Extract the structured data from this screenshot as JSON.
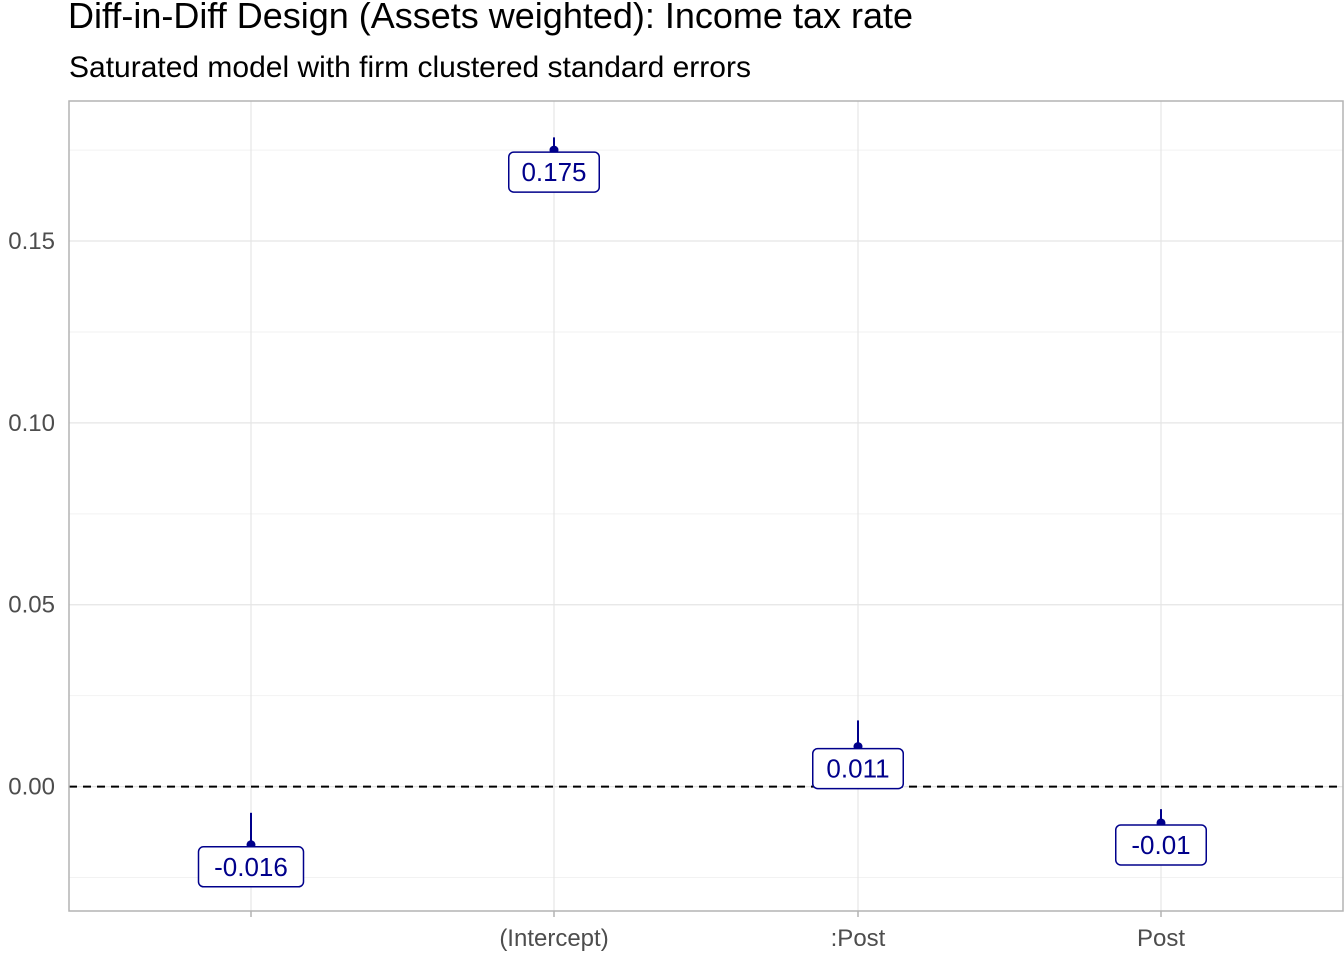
{
  "chart_data": {
    "type": "errorbar",
    "title": "Diff-in-Diff Design (Assets weighted): Income tax rate",
    "subtitle": "Saturated model with firm clustered standard errors",
    "xlabel": "",
    "ylabel": "",
    "categories": [
      "",
      "(Intercept)",
      ":Post",
      "Post"
    ],
    "estimates": [
      -0.016,
      0.175,
      0.011,
      -0.01
    ],
    "labels": [
      "-0.016",
      "0.175",
      "0.011",
      "-0.01"
    ],
    "ci_low": [
      -0.0215,
      0.171,
      0.0075,
      -0.0125
    ],
    "ci_high": [
      -0.0072,
      0.1785,
      0.0182,
      -0.0062
    ],
    "y_ticks": [
      0.0,
      0.05,
      0.1,
      0.15
    ],
    "y_tick_labels": [
      "0.00",
      "0.05",
      "0.10",
      "0.15"
    ],
    "ylim": [
      -0.0342,
      0.1885
    ],
    "reference_line": 0,
    "grid": true,
    "colors": {
      "point": "#00008b",
      "label_text": "#00008b",
      "label_border": "#00008b",
      "grid": "#ebebeb",
      "panel_border": "#b3b3b3",
      "reference": "#000000"
    }
  }
}
